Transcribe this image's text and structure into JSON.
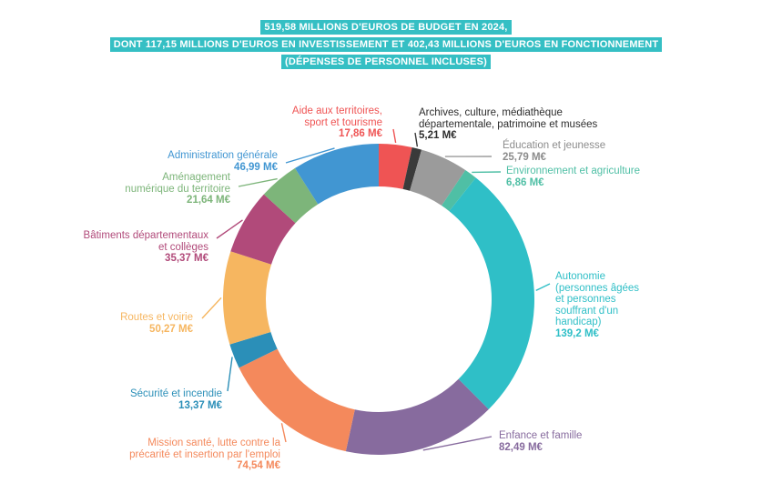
{
  "header": {
    "line1": "519,58 MILLIONS D'EUROS DE BUDGET EN 2024,",
    "line2": "DONT 117,15 MILLIONS D'EUROS EN INVESTISSEMENT ET 402,43 MILLIONS D'EUROS EN FONCTIONNEMENT",
    "line3": "(DÉPENSES DE PERSONNEL INCLUSES)"
  },
  "chart_data": {
    "type": "pie",
    "unit": "M€",
    "slices": [
      {
        "key": "aide",
        "label_lines": [
          "Aide aux territoires,",
          "sport et tourisme"
        ],
        "value": 17.86,
        "value_text": "17,86 M€",
        "color": "#ef5454"
      },
      {
        "key": "archives",
        "label_lines": [
          "Archives, culture, médiathèque",
          "départementale, patrimoine et musées"
        ],
        "value": 5.21,
        "value_text": "5,21 M€",
        "color": "#3a3a3a"
      },
      {
        "key": "education",
        "label_lines": [
          "Éducation et jeunesse"
        ],
        "value": 25.79,
        "value_text": "25,79 M€",
        "color": "#9b9b9b"
      },
      {
        "key": "environnement",
        "label_lines": [
          "Environnement et agriculture"
        ],
        "value": 6.86,
        "value_text": "6,86 M€",
        "color": "#4fbfa5"
      },
      {
        "key": "autonomie",
        "label_lines": [
          "Autonomie",
          "(personnes âgées",
          "et personnes",
          "souffrant d'un",
          "handicap)"
        ],
        "value": 139.2,
        "value_text": "139,2 M€",
        "color": "#2fbfc7"
      },
      {
        "key": "enfance",
        "label_lines": [
          "Enfance et famille"
        ],
        "value": 82.49,
        "value_text": "82,49 M€",
        "color": "#876b9e"
      },
      {
        "key": "mission",
        "label_lines": [
          "Mission santé, lutte contre la",
          "précarité et insertion par l'emploi"
        ],
        "value": 74.54,
        "value_text": "74,54 M€",
        "color": "#f4895c"
      },
      {
        "key": "securite",
        "label_lines": [
          "Sécurité et incendie"
        ],
        "value": 13.37,
        "value_text": "13,37 M€",
        "color": "#2b8fb8"
      },
      {
        "key": "routes",
        "label_lines": [
          "Routes et voirie"
        ],
        "value": 50.27,
        "value_text": "50,27 M€",
        "color": "#f6b660"
      },
      {
        "key": "batiments",
        "label_lines": [
          "Bâtiments départementaux",
          "et collèges"
        ],
        "value": 35.37,
        "value_text": "35,37 M€",
        "color": "#b14a7a"
      },
      {
        "key": "amenagement",
        "label_lines": [
          "Aménagement",
          "numérique du territoire"
        ],
        "value": 21.64,
        "value_text": "21,64 M€",
        "color": "#7db57a"
      },
      {
        "key": "administration",
        "label_lines": [
          "Administration générale"
        ],
        "value": 46.99,
        "value_text": "46,99 M€",
        "color": "#4196d2"
      }
    ]
  }
}
